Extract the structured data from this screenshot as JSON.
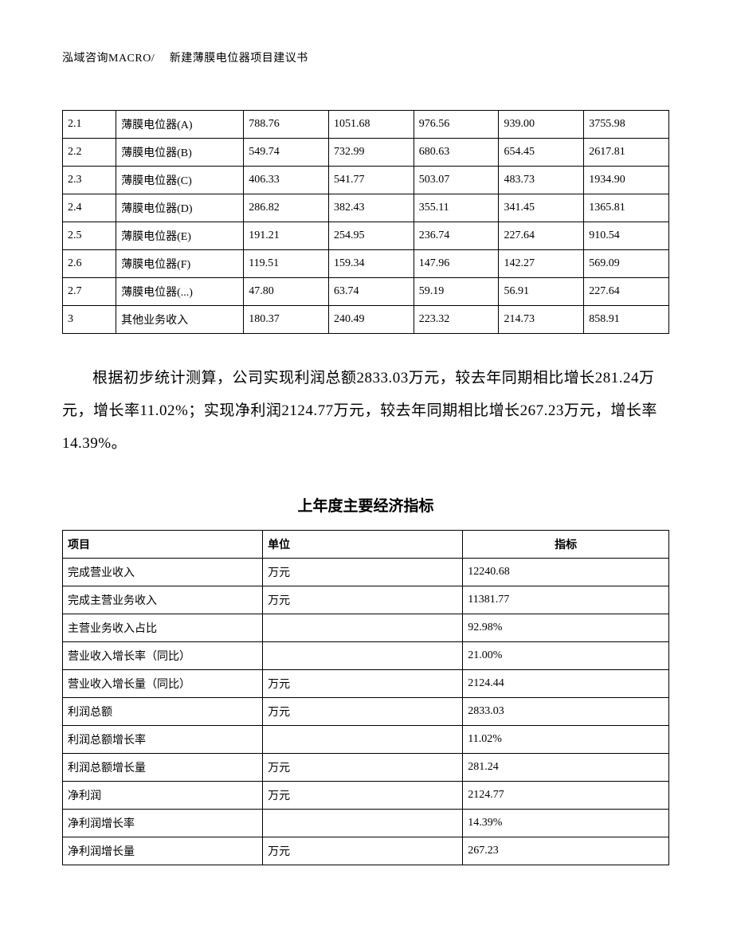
{
  "header": {
    "text": "泓域咨询MACRO/　 新建薄膜电位器项目建议书"
  },
  "table1": {
    "rows": [
      [
        "2.1",
        "薄膜电位器(A)",
        "788.76",
        "1051.68",
        "976.56",
        "939.00",
        "3755.98"
      ],
      [
        "2.2",
        "薄膜电位器(B)",
        "549.74",
        "732.99",
        "680.63",
        "654.45",
        "2617.81"
      ],
      [
        "2.3",
        "薄膜电位器(C)",
        "406.33",
        "541.77",
        "503.07",
        "483.73",
        "1934.90"
      ],
      [
        "2.4",
        "薄膜电位器(D)",
        "286.82",
        "382.43",
        "355.11",
        "341.45",
        "1365.81"
      ],
      [
        "2.5",
        "薄膜电位器(E)",
        "191.21",
        "254.95",
        "236.74",
        "227.64",
        "910.54"
      ],
      [
        "2.6",
        "薄膜电位器(F)",
        "119.51",
        "159.34",
        "147.96",
        "142.27",
        "569.09"
      ],
      [
        "2.7",
        "薄膜电位器(...)",
        "47.80",
        "63.74",
        "59.19",
        "56.91",
        "227.64"
      ],
      [
        "3",
        "其他业务收入",
        "180.37",
        "240.49",
        "223.32",
        "214.73",
        "858.91"
      ]
    ]
  },
  "paragraph": {
    "text": "根据初步统计测算，公司实现利润总额2833.03万元，较去年同期相比增长281.24万元，增长率11.02%；实现净利润2124.77万元，较去年同期相比增长267.23万元，增长率14.39%。"
  },
  "section_title": "上年度主要经济指标",
  "table2": {
    "headers": [
      "项目",
      "单位",
      "指标"
    ],
    "rows": [
      [
        "完成营业收入",
        "万元",
        "12240.68"
      ],
      [
        "完成主营业务收入",
        "万元",
        "11381.77"
      ],
      [
        "主营业务收入占比",
        "",
        "92.98%"
      ],
      [
        "营业收入增长率（同比）",
        "",
        "21.00%"
      ],
      [
        "营业收入增长量（同比）",
        "万元",
        "2124.44"
      ],
      [
        "利润总额",
        "万元",
        "2833.03"
      ],
      [
        "利润总额增长率",
        "",
        "11.02%"
      ],
      [
        "利润总额增长量",
        "万元",
        "281.24"
      ],
      [
        "净利润",
        "万元",
        "2124.77"
      ],
      [
        "净利润增长率",
        "",
        "14.39%"
      ],
      [
        "净利润增长量",
        "万元",
        "267.23"
      ]
    ]
  }
}
